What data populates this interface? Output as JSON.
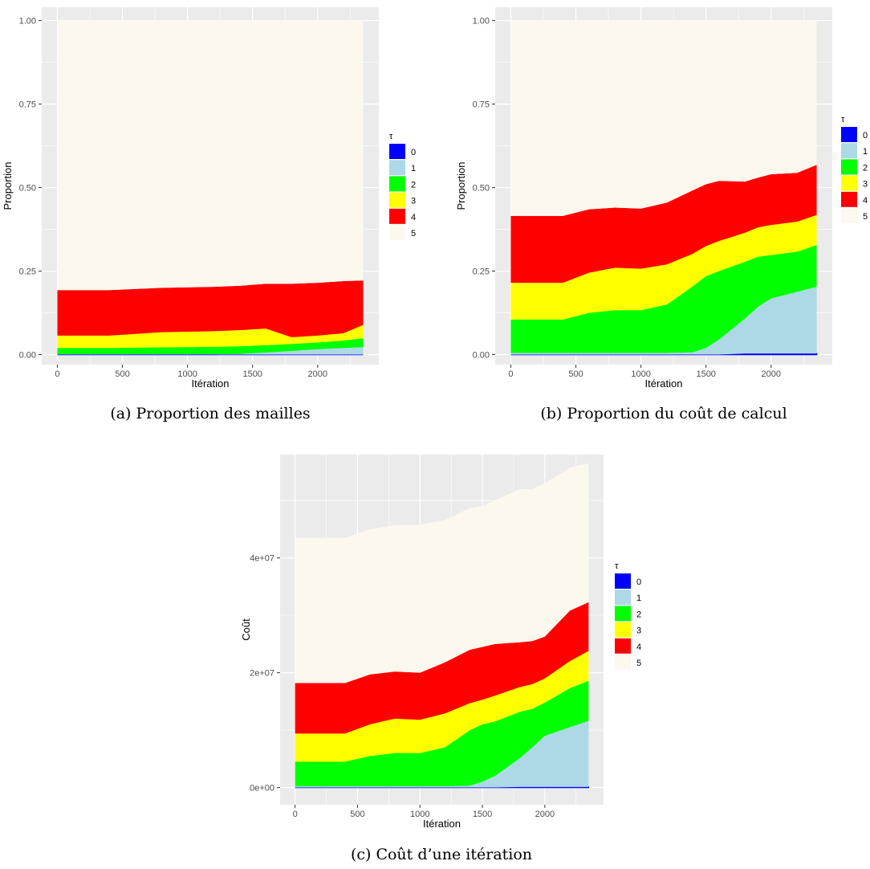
{
  "colors": {
    "panel_background": "#ebebeb",
    "grid": "#ffffff",
    "tau_0": "#0000ff",
    "tau_1": "#add8e6",
    "tau_2": "#00ff00",
    "tau_3": "#ffff00",
    "tau_4": "#ff0000",
    "tau_5": "#fdf8ee"
  },
  "chart_data": [
    {
      "id": "a",
      "type": "area",
      "stacked": true,
      "caption": "(a) Proportion des mailles",
      "xlabel": "Itération",
      "ylabel": "Proportion",
      "xlim": [
        -120,
        2470
      ],
      "ylim": [
        -0.03,
        1.04
      ],
      "x_ticks": [
        0,
        500,
        1000,
        1500,
        2000
      ],
      "x_tick_labels": [
        "0",
        "500",
        "1000",
        "1500",
        "2000"
      ],
      "y_ticks": [
        0,
        0.25,
        0.5,
        0.75,
        1
      ],
      "y_tick_labels": [
        "0.00",
        "0.25",
        "0.50",
        "0.75",
        "1.00"
      ],
      "legend": {
        "title": "τ",
        "position": "right",
        "labels": [
          "0",
          "1",
          "2",
          "3",
          "4",
          "5"
        ]
      },
      "x": [
        0,
        400,
        800,
        1200,
        1400,
        1600,
        1800,
        2000,
        2200,
        2350
      ],
      "series": [
        {
          "name": "0",
          "values": [
            0,
            0,
            0,
            0,
            0,
            0,
            0,
            0,
            0,
            0
          ]
        },
        {
          "name": "1",
          "values": [
            0.001,
            0.001,
            0.001,
            0.001,
            0.002,
            0.006,
            0.011,
            0.016,
            0.02,
            0.022
          ]
        },
        {
          "name": "2",
          "values": [
            0.019,
            0.019,
            0.021,
            0.022,
            0.023,
            0.022,
            0.021,
            0.02,
            0.022,
            0.027
          ]
        },
        {
          "name": "3",
          "values": [
            0.037,
            0.037,
            0.045,
            0.047,
            0.048,
            0.05,
            0.02,
            0.021,
            0.022,
            0.04
          ]
        },
        {
          "name": "4",
          "values": [
            0.136,
            0.136,
            0.133,
            0.133,
            0.133,
            0.134,
            0.16,
            0.158,
            0.156,
            0.133
          ]
        },
        {
          "name": "5",
          "values": [
            0.807,
            0.807,
            0.8,
            0.797,
            0.794,
            0.788,
            0.788,
            0.785,
            0.78,
            0.778
          ]
        }
      ]
    },
    {
      "id": "b",
      "type": "area",
      "stacked": true,
      "caption": "(b) Proportion du coût de calcul",
      "xlabel": "Itération",
      "ylabel": "Proportion",
      "xlim": [
        -120,
        2470
      ],
      "ylim": [
        -0.03,
        1.04
      ],
      "x_ticks": [
        0,
        500,
        1000,
        1500,
        2000
      ],
      "x_tick_labels": [
        "0",
        "500",
        "1000",
        "1500",
        "2000"
      ],
      "y_ticks": [
        0,
        0.25,
        0.5,
        0.75,
        1
      ],
      "y_tick_labels": [
        "0.00",
        "0.25",
        "0.50",
        "0.75",
        "1.00"
      ],
      "legend": {
        "title": "τ",
        "position": "right",
        "labels": [
          "0",
          "1",
          "2",
          "3",
          "4",
          "5"
        ]
      },
      "x": [
        0,
        400,
        600,
        800,
        1000,
        1200,
        1400,
        1500,
        1600,
        1800,
        1900,
        2000,
        2200,
        2350
      ],
      "series": [
        {
          "name": "0",
          "values": [
            0,
            0,
            0,
            0,
            0,
            0,
            0,
            0,
            0,
            0.003,
            0.003,
            0.003,
            0.003,
            0.003
          ]
        },
        {
          "name": "1",
          "values": [
            0.005,
            0.005,
            0.005,
            0.005,
            0.005,
            0.005,
            0.007,
            0.02,
            0.045,
            0.105,
            0.14,
            0.165,
            0.185,
            0.2
          ]
        },
        {
          "name": "2",
          "values": [
            0.1,
            0.1,
            0.12,
            0.128,
            0.128,
            0.145,
            0.198,
            0.215,
            0.205,
            0.17,
            0.15,
            0.13,
            0.12,
            0.125
          ]
        },
        {
          "name": "3",
          "values": [
            0.11,
            0.11,
            0.12,
            0.127,
            0.124,
            0.12,
            0.097,
            0.09,
            0.09,
            0.087,
            0.088,
            0.09,
            0.09,
            0.09
          ]
        },
        {
          "name": "4",
          "values": [
            0.2,
            0.2,
            0.19,
            0.18,
            0.18,
            0.185,
            0.19,
            0.185,
            0.18,
            0.153,
            0.149,
            0.152,
            0.146,
            0.15
          ]
        },
        {
          "name": "5",
          "values": [
            0.585,
            0.585,
            0.565,
            0.56,
            0.563,
            0.545,
            0.508,
            0.49,
            0.48,
            0.482,
            0.47,
            0.46,
            0.456,
            0.432
          ]
        }
      ]
    },
    {
      "id": "c",
      "type": "area",
      "stacked": true,
      "caption": "(c) Coût d’une itération",
      "xlabel": "Itération",
      "ylabel": "Coût",
      "xlim": [
        -120,
        2470
      ],
      "ylim": [
        -3000000,
        58000000
      ],
      "x_ticks": [
        0,
        500,
        1000,
        1500,
        2000
      ],
      "x_tick_labels": [
        "0",
        "500",
        "1000",
        "1500",
        "2000"
      ],
      "y_ticks": [
        0,
        20000000,
        40000000
      ],
      "y_tick_labels": [
        "0e+00",
        "2e+07",
        "4e+07"
      ],
      "legend": {
        "title": "τ",
        "position": "right",
        "labels": [
          "0",
          "1",
          "2",
          "3",
          "4",
          "5"
        ]
      },
      "x": [
        0,
        400,
        600,
        800,
        1000,
        1200,
        1400,
        1500,
        1600,
        1800,
        1900,
        2000,
        2200,
        2350
      ],
      "series": [
        {
          "name": "0",
          "values": [
            0,
            0,
            0,
            0,
            0,
            0,
            0,
            0,
            0,
            100000,
            100000,
            100000,
            100000,
            100000
          ]
        },
        {
          "name": "1",
          "values": [
            200000,
            200000,
            200000,
            200000,
            200000,
            200000,
            300000,
            1000000,
            2000000,
            5000000,
            6900000,
            8900000,
            10400000,
            11500000
          ]
        },
        {
          "name": "2",
          "values": [
            4300000,
            4300000,
            5300000,
            5800000,
            5800000,
            6800000,
            9700000,
            10000000,
            9500000,
            8100000,
            6700000,
            5800000,
            6800000,
            7000000
          ]
        },
        {
          "name": "3",
          "values": [
            4900000,
            4900000,
            5500000,
            6000000,
            5800000,
            5900000,
            4700000,
            4300000,
            4500000,
            4300000,
            4300000,
            4200000,
            4700000,
            5200000
          ]
        },
        {
          "name": "4",
          "values": [
            8800000,
            8800000,
            8700000,
            8200000,
            8200000,
            8900000,
            9300000,
            9200000,
            9000000,
            7800000,
            7500000,
            7300000,
            8800000,
            8500000
          ]
        },
        {
          "name": "5",
          "values": [
            25300000,
            25300000,
            25300000,
            25500000,
            25800000,
            24800000,
            24700000,
            24500000,
            25000000,
            26700000,
            26500000,
            26700000,
            24900000,
            24200000
          ]
        }
      ]
    }
  ]
}
